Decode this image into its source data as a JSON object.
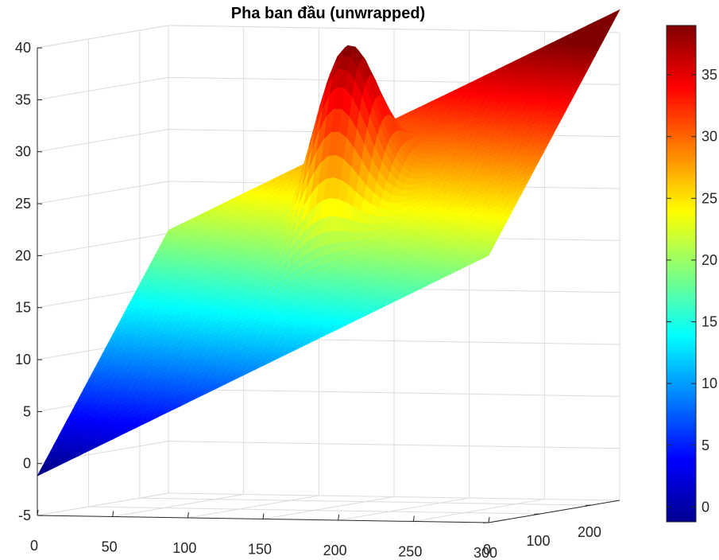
{
  "chart_data": {
    "type": "surface",
    "title": "Pha ban đầu (unwrapped)",
    "x_ticks": [
      "0",
      "50",
      "100",
      "150",
      "200",
      "250",
      "300"
    ],
    "y_ticks": [
      "0",
      "100",
      "200"
    ],
    "z_ticks": [
      "-5",
      "0",
      "5",
      "10",
      "15",
      "20",
      "25",
      "30",
      "35",
      "40"
    ],
    "colorbar_ticks": [
      "0",
      "5",
      "10",
      "15",
      "20",
      "25",
      "30",
      "35"
    ],
    "xlim": [
      0,
      300
    ],
    "ylim": [
      0,
      256
    ],
    "zlim": [
      -5,
      40
    ],
    "colorbar_lim": [
      -1.2,
      39
    ],
    "colormap": "jet",
    "grid": true,
    "surface": {
      "plane": "z = -1.2 + 0.0729*x + 0.0839*y",
      "corners": [
        {
          "x": 0,
          "y": 0,
          "z": -1.2
        },
        {
          "x": 0,
          "y": 256,
          "z": 20.3
        },
        {
          "x": 300,
          "y": 0,
          "z": 20.7
        },
        {
          "x": 300,
          "y": 256,
          "z": 42.2
        }
      ],
      "bump": {
        "x_center": 150,
        "y_center": 160,
        "peak_z": 39,
        "profile": "gaussian"
      }
    }
  }
}
